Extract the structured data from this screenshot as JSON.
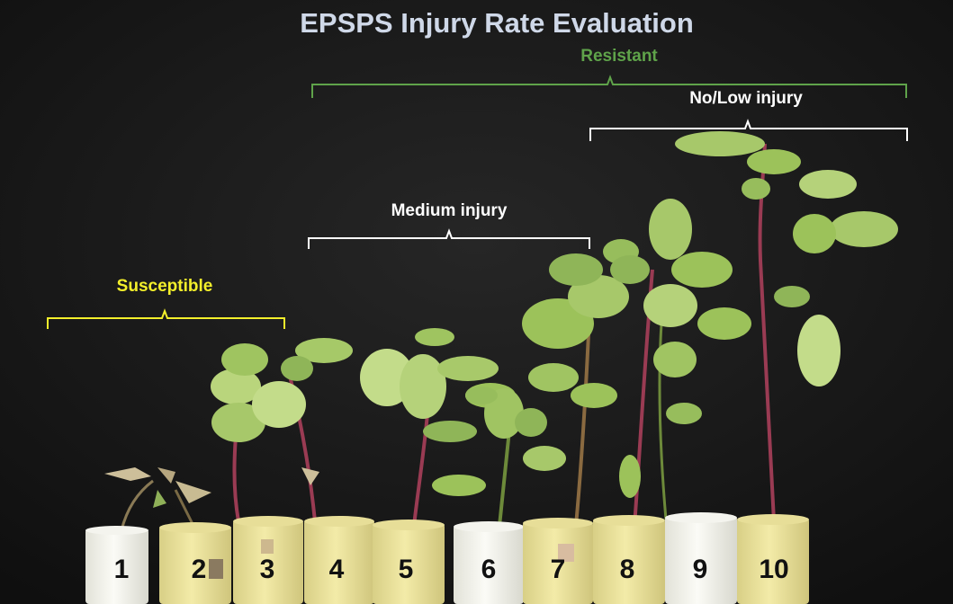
{
  "title": "EPSPS Injury Rate Evaluation",
  "groups": {
    "resistant": "Resistant",
    "no_low_injury": "No/Low injury",
    "medium_injury": "Medium injury",
    "susceptible": "Susceptible"
  },
  "plants": [
    {
      "number": "1"
    },
    {
      "number": "2"
    },
    {
      "number": "3"
    },
    {
      "number": "4"
    },
    {
      "number": "5"
    },
    {
      "number": "6"
    },
    {
      "number": "7"
    },
    {
      "number": "8"
    },
    {
      "number": "9"
    },
    {
      "number": "10"
    }
  ],
  "colors": {
    "background": "#161616",
    "title": "#cfd8e8",
    "resistant": "#5fa34a",
    "injury_labels": "#ffffff",
    "susceptible": "#f3ef2b",
    "leaf": "#9cc25a",
    "pot": "#efe6a0"
  }
}
